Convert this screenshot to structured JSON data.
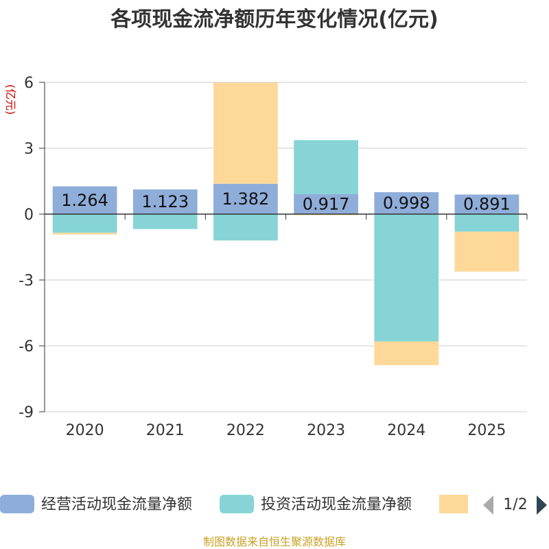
{
  "chart_data": {
    "type": "bar",
    "stacked": true,
    "title": "各项现金流净额历年变化情况(亿元)",
    "ylabel": "(亿元)",
    "categories": [
      "2020",
      "2021",
      "2022",
      "2023",
      "2024",
      "2025"
    ],
    "ylim": [
      -9,
      6
    ],
    "yticks": [
      6,
      3,
      0,
      -3,
      -6,
      -9
    ],
    "grid": true,
    "series": [
      {
        "name": "经营活动现金流量净额",
        "color": "#8fadd9",
        "values": [
          1.264,
          1.123,
          1.382,
          0.917,
          0.998,
          0.891
        ],
        "labels": [
          "1.264",
          "1.123",
          "1.382",
          "0.917",
          "0.998",
          "0.891"
        ]
      },
      {
        "name": "投资活动现金流量净额",
        "color": "#86d4d6",
        "values": [
          -0.85,
          -0.68,
          -1.2,
          2.45,
          -5.8,
          -0.8
        ]
      },
      {
        "name": "",
        "color": "#fdd898",
        "values": [
          -0.08,
          0.0,
          4.6,
          -0.05,
          -1.08,
          -1.82
        ]
      }
    ],
    "legend": {
      "position": "bottom",
      "page": "1/2"
    },
    "source": "制图数据来自恒生聚源数据库"
  }
}
